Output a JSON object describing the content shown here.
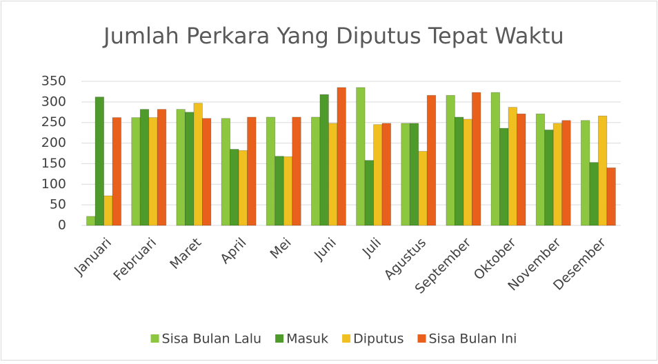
{
  "chart_data": {
    "type": "bar",
    "title": "Jumlah Perkara Yang Diputus Tepat Waktu",
    "categories": [
      "Januari",
      "Februari",
      "Maret",
      "April",
      "Mei",
      "Juni",
      "Juli",
      "Agustus",
      "September",
      "Oktober",
      "November",
      "Desember"
    ],
    "series": [
      {
        "name": "Sisa Bulan Lalu",
        "color": "#8dc63f",
        "values": [
          22,
          262,
          282,
          260,
          263,
          263,
          335,
          248,
          316,
          323,
          271,
          255
        ]
      },
      {
        "name": "Masuk",
        "color": "#4e9a2a",
        "values": [
          312,
          282,
          275,
          185,
          168,
          318,
          158,
          248,
          263,
          236,
          232,
          153
        ]
      },
      {
        "name": "Diputus",
        "color": "#f0c020",
        "values": [
          72,
          262,
          297,
          182,
          167,
          248,
          245,
          180,
          258,
          287,
          248,
          266
        ]
      },
      {
        "name": "Sisa Bulan Ini",
        "color": "#e8601c",
        "values": [
          262,
          282,
          260,
          263,
          263,
          335,
          248,
          316,
          323,
          271,
          255,
          140
        ]
      }
    ],
    "ylim": [
      0,
      350
    ],
    "yticks": [
      0,
      50,
      100,
      150,
      200,
      250,
      300,
      350
    ],
    "grid": true,
    "legend": "bottom"
  }
}
